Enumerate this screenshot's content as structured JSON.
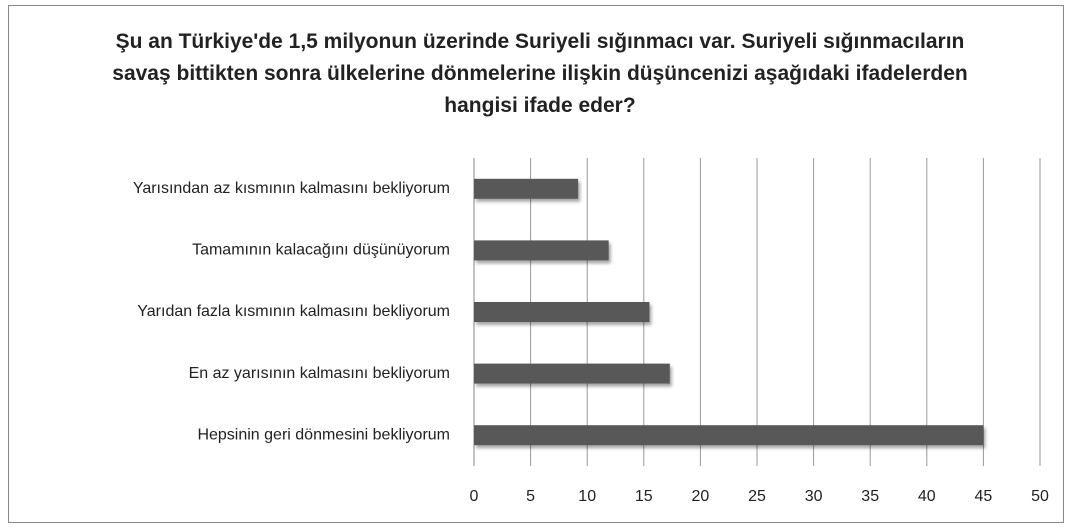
{
  "chart_data": {
    "type": "bar",
    "orientation": "horizontal",
    "title": "Şu an Türkiye'de 1,5 milyonun üzerinde Suriyeli sığınmacı var. Suriyeli sığınmacıların savaş bittikten sonra ülkelerine dönmelerine ilişkin düşüncenizi aşağıdaki ifadelerden hangisi ifade eder?",
    "categories": [
      "Yarısından az kısmının kalmasını bekliyorum",
      "Tamamının kalacağını düşünüyorum",
      "Yarıdan fazla kısmının kalmasını bekliyorum",
      "En az yarısının kalmasını bekliyorum",
      "Hepsinin geri dönmesini bekliyorum"
    ],
    "values": [
      9.2,
      11.9,
      15.5,
      17.3,
      45
    ],
    "color": "#595959",
    "xlim": [
      0,
      50
    ],
    "xticks": [
      0,
      5,
      10,
      15,
      20,
      25,
      30,
      35,
      40,
      45,
      50
    ],
    "grid": true
  }
}
